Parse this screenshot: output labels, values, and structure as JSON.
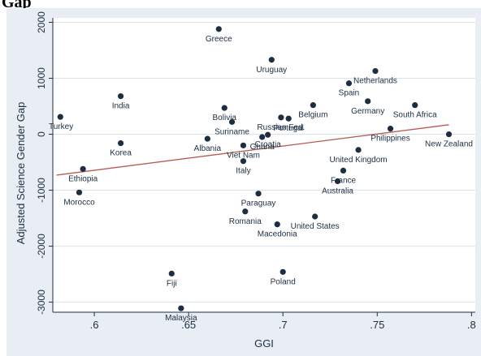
{
  "header_fragment": "Gap",
  "chart_data": {
    "type": "scatter",
    "title": "",
    "xlabel": "GGI",
    "ylabel": "Adjusted Science Gender Gap",
    "xlim": [
      0.578,
      0.802
    ],
    "ylim": [
      -3180,
      2080
    ],
    "x_ticks": [
      0.6,
      0.65,
      0.7,
      0.75,
      0.8
    ],
    "x_tick_labels": [
      ".6",
      ".65",
      ".7",
      ".75",
      ".8"
    ],
    "y_ticks": [
      -3000,
      -2000,
      -1000,
      0,
      1000,
      2000
    ],
    "y_tick_labels": [
      "-3000",
      "-2000",
      "-1000",
      "0",
      "1000",
      "2000"
    ],
    "grid": true,
    "legend": "none",
    "trend_line": {
      "x": [
        0.58,
        0.788
      ],
      "y": [
        -730,
        170
      ]
    },
    "colors": {
      "outer_background": "#e8eef3",
      "plot_background": "#ffffff",
      "grid": "#dbe3ea",
      "point": "#1c2e42",
      "trend_line": "#b85a52",
      "text": "#1c2e42"
    },
    "points": [
      {
        "label": "Greece",
        "x": 0.666,
        "y": 1880
      },
      {
        "label": "Uruguay",
        "x": 0.694,
        "y": 1330
      },
      {
        "label": "Netherlands",
        "x": 0.749,
        "y": 1130
      },
      {
        "label": "Spain",
        "x": 0.735,
        "y": 910
      },
      {
        "label": "Germany",
        "x": 0.745,
        "y": 590
      },
      {
        "label": "South Africa",
        "x": 0.77,
        "y": 520
      },
      {
        "label": "Belgium",
        "x": 0.716,
        "y": 520
      },
      {
        "label": "India",
        "x": 0.614,
        "y": 680
      },
      {
        "label": "Bolivia",
        "x": 0.669,
        "y": 470
      },
      {
        "label": "Turkey",
        "x": 0.582,
        "y": 310
      },
      {
        "label": "Suriname",
        "x": 0.673,
        "y": 220
      },
      {
        "label": "Russian Fed.",
        "x": 0.699,
        "y": 300
      },
      {
        "label": "Portugal",
        "x": 0.703,
        "y": 280
      },
      {
        "label": "Philippines",
        "x": 0.757,
        "y": 100
      },
      {
        "label": "New Zealand",
        "x": 0.788,
        "y": 0
      },
      {
        "label": "Croatia",
        "x": 0.692,
        "y": -10
      },
      {
        "label": "Ghana",
        "x": 0.689,
        "y": -50
      },
      {
        "label": "Albania",
        "x": 0.66,
        "y": -80
      },
      {
        "label": "Viet Nam",
        "x": 0.679,
        "y": -200
      },
      {
        "label": "Korea",
        "x": 0.614,
        "y": -160
      },
      {
        "label": "Italy",
        "x": 0.679,
        "y": -480
      },
      {
        "label": "United Kingdom",
        "x": 0.74,
        "y": -280
      },
      {
        "label": "Ethiopia",
        "x": 0.594,
        "y": -620
      },
      {
        "label": "France",
        "x": 0.732,
        "y": -650
      },
      {
        "label": "Australia",
        "x": 0.729,
        "y": -840
      },
      {
        "label": "Morocco",
        "x": 0.592,
        "y": -1040
      },
      {
        "label": "Paraguay",
        "x": 0.687,
        "y": -1060
      },
      {
        "label": "Romania",
        "x": 0.68,
        "y": -1380
      },
      {
        "label": "United States",
        "x": 0.717,
        "y": -1470
      },
      {
        "label": "Macedonia",
        "x": 0.697,
        "y": -1610
      },
      {
        "label": "Fiji",
        "x": 0.641,
        "y": -2490
      },
      {
        "label": "Poland",
        "x": 0.7,
        "y": -2460
      },
      {
        "label": "Malaysia",
        "x": 0.646,
        "y": -3110
      }
    ]
  }
}
